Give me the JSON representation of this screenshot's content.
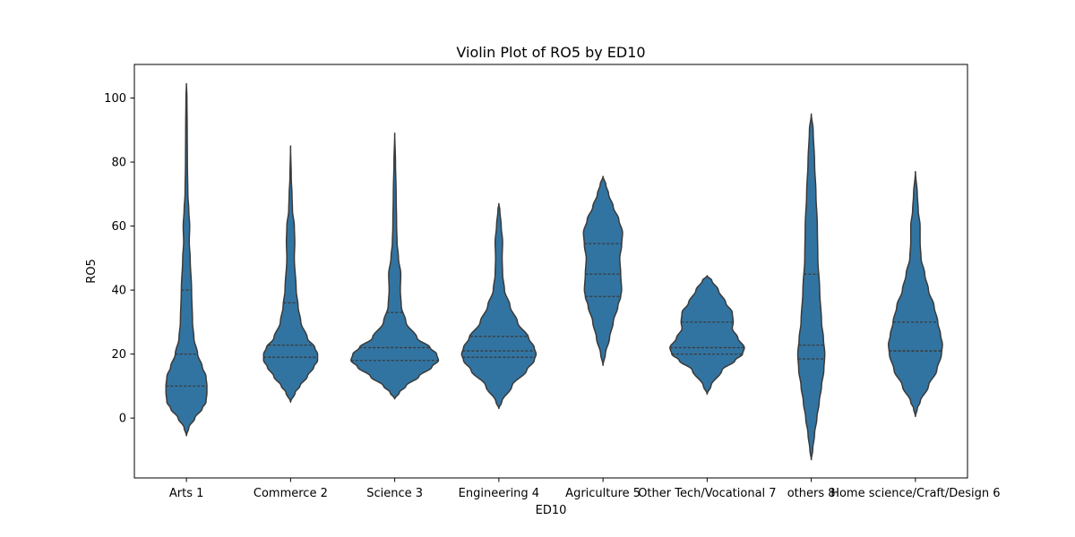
{
  "chart_data": {
    "type": "violin",
    "title": "Violin Plot of RO5 by ED10",
    "xlabel": "ED10",
    "ylabel": "RO5",
    "ylim": [
      -18.7,
      110.5
    ],
    "yticks": [
      0,
      20,
      40,
      60,
      80,
      100
    ],
    "grid": false,
    "legend": "none",
    "color": "#3274a1",
    "outline_color": "#3a3a3a",
    "categories": [
      "Arts 1",
      "Commerce 2",
      "Science 3",
      "Engineering 4",
      "Agriculture 5",
      "Other Tech/Vocational 7",
      "others 8",
      "Home science/Craft/Design 6"
    ],
    "violins": [
      {
        "quartiles": [
          10,
          20,
          40
        ],
        "profile": [
          [
            -5.5,
            0
          ],
          [
            -3,
            2.5
          ],
          [
            0,
            9
          ],
          [
            3,
            17
          ],
          [
            5,
            21
          ],
          [
            8,
            22
          ],
          [
            10,
            22
          ],
          [
            13,
            21
          ],
          [
            16,
            17
          ],
          [
            20,
            12
          ],
          [
            25,
            8
          ],
          [
            30,
            6.5
          ],
          [
            40,
            5.5
          ],
          [
            50,
            4
          ],
          [
            55,
            3
          ],
          [
            60,
            3.5
          ],
          [
            65,
            2.5
          ],
          [
            70,
            1.5
          ],
          [
            80,
            1
          ],
          [
            90,
            0.8
          ],
          [
            100,
            0.5
          ],
          [
            104.5,
            0
          ]
        ]
      },
      {
        "quartiles": [
          19,
          22.8,
          36
        ],
        "profile": [
          [
            5,
            0
          ],
          [
            8,
            5
          ],
          [
            10,
            10
          ],
          [
            13,
            18
          ],
          [
            16,
            25
          ],
          [
            18,
            29
          ],
          [
            20,
            29
          ],
          [
            22,
            26
          ],
          [
            25,
            18
          ],
          [
            30,
            11
          ],
          [
            35,
            8
          ],
          [
            40,
            6
          ],
          [
            50,
            4
          ],
          [
            55,
            4.5
          ],
          [
            60,
            4
          ],
          [
            65,
            2
          ],
          [
            70,
            1.5
          ],
          [
            75,
            0.7
          ],
          [
            85,
            0
          ]
        ]
      },
      {
        "quartiles": [
          18,
          22,
          33
        ],
        "profile": [
          [
            6,
            0
          ],
          [
            8,
            5
          ],
          [
            10,
            12
          ],
          [
            13,
            26
          ],
          [
            16,
            40
          ],
          [
            18,
            47
          ],
          [
            20,
            45
          ],
          [
            22,
            38
          ],
          [
            25,
            24
          ],
          [
            30,
            12
          ],
          [
            35,
            7
          ],
          [
            40,
            6
          ],
          [
            45,
            6.5
          ],
          [
            50,
            4
          ],
          [
            55,
            2.5
          ],
          [
            60,
            2
          ],
          [
            70,
            1.5
          ],
          [
            80,
            0.8
          ],
          [
            89,
            0
          ]
        ]
      },
      {
        "quartiles": [
          19,
          21,
          25.5
        ],
        "profile": [
          [
            3,
            0
          ],
          [
            5,
            3
          ],
          [
            10,
            14
          ],
          [
            15,
            30
          ],
          [
            18,
            38
          ],
          [
            20,
            40
          ],
          [
            22,
            38
          ],
          [
            25,
            32
          ],
          [
            30,
            20
          ],
          [
            35,
            12
          ],
          [
            40,
            6
          ],
          [
            45,
            4
          ],
          [
            50,
            3.5
          ],
          [
            55,
            4
          ],
          [
            60,
            2.5
          ],
          [
            65,
            1
          ],
          [
            67,
            0
          ]
        ]
      },
      {
        "quartiles": [
          38,
          45,
          54.5
        ],
        "profile": [
          [
            16.5,
            0
          ],
          [
            20,
            2.5
          ],
          [
            25,
            7
          ],
          [
            30,
            11
          ],
          [
            35,
            16
          ],
          [
            38,
            19
          ],
          [
            40,
            20
          ],
          [
            45,
            19
          ],
          [
            50,
            18
          ],
          [
            54,
            20
          ],
          [
            58,
            21
          ],
          [
            62,
            17
          ],
          [
            66,
            11
          ],
          [
            70,
            6
          ],
          [
            73,
            3
          ],
          [
            75.5,
            0
          ]
        ]
      },
      {
        "quartiles": [
          20,
          22,
          30
        ],
        "profile": [
          [
            7.5,
            0
          ],
          [
            10,
            4
          ],
          [
            15,
            16
          ],
          [
            18,
            30
          ],
          [
            20,
            38
          ],
          [
            22,
            40
          ],
          [
            25,
            33
          ],
          [
            28,
            27
          ],
          [
            30,
            28
          ],
          [
            33,
            27
          ],
          [
            36,
            20
          ],
          [
            40,
            12
          ],
          [
            43,
            5
          ],
          [
            44.5,
            0
          ]
        ]
      },
      {
        "quartiles": [
          18.5,
          22.8,
          45
        ],
        "profile": [
          [
            -13,
            0
          ],
          [
            -10,
            1.5
          ],
          [
            -5,
            3.5
          ],
          [
            0,
            6
          ],
          [
            5,
            8.5
          ],
          [
            10,
            11
          ],
          [
            15,
            13.5
          ],
          [
            20,
            14.5
          ],
          [
            25,
            13
          ],
          [
            30,
            11
          ],
          [
            40,
            9
          ],
          [
            50,
            7
          ],
          [
            60,
            6.5
          ],
          [
            70,
            5
          ],
          [
            80,
            3.5
          ],
          [
            90,
            2
          ],
          [
            95,
            0
          ]
        ]
      },
      {
        "quartiles": [
          21,
          21,
          30
        ],
        "profile": [
          [
            0.5,
            0
          ],
          [
            3,
            2
          ],
          [
            5,
            5
          ],
          [
            10,
            14
          ],
          [
            15,
            23
          ],
          [
            20,
            28
          ],
          [
            23,
            29
          ],
          [
            26,
            27
          ],
          [
            30,
            24
          ],
          [
            35,
            20
          ],
          [
            40,
            14
          ],
          [
            45,
            10
          ],
          [
            50,
            6
          ],
          [
            55,
            5
          ],
          [
            60,
            5
          ],
          [
            65,
            3
          ],
          [
            70,
            2
          ],
          [
            77,
            0
          ]
        ]
      }
    ]
  }
}
